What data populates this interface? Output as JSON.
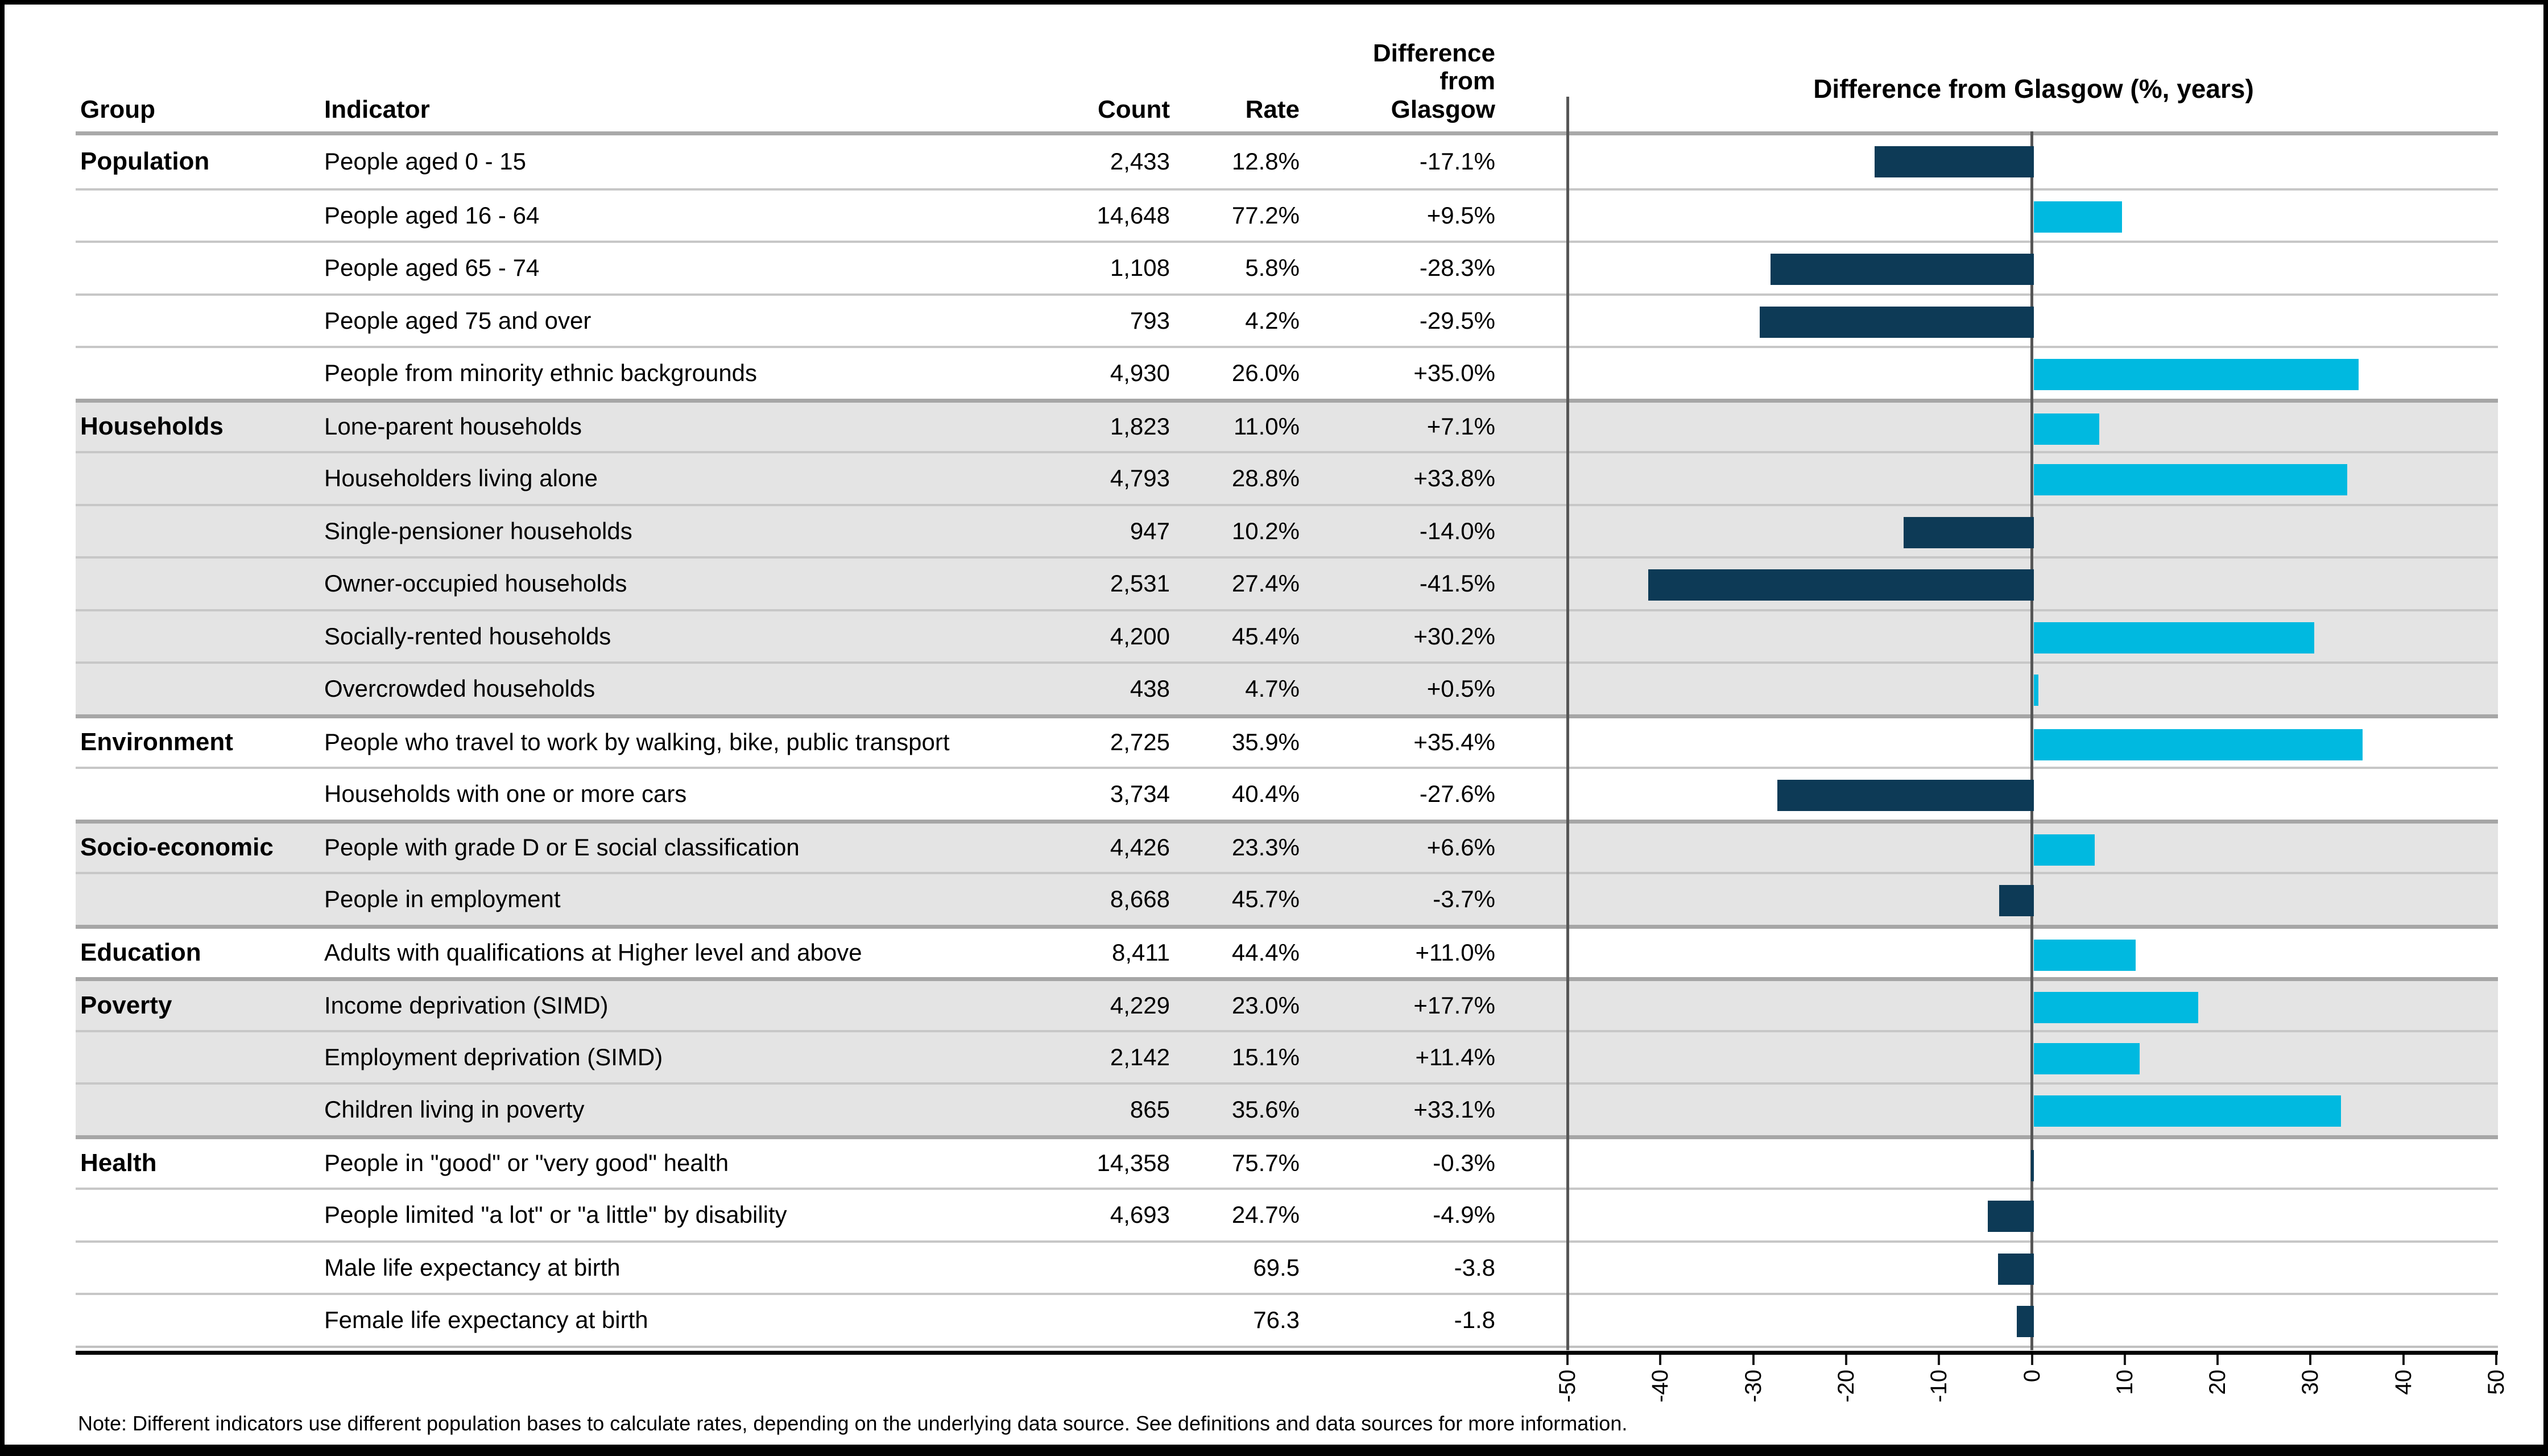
{
  "headers": {
    "group": "Group",
    "indicator": "Indicator",
    "count": "Count",
    "rate": "Rate",
    "difference": "Difference\nfrom\nGlasgow"
  },
  "note": "Note: Different indicators use different population bases to calculate rates, depending on the underlying data source. See definitions and data sources for more information.",
  "chart_data": {
    "type": "bar",
    "orientation": "horizontal",
    "title": "Difference from Glasgow (%, years)",
    "xlim": [
      -50,
      50
    ],
    "x_tick_labels": [
      "-50",
      "-40",
      "-30",
      "-20",
      "-10",
      "0",
      "10",
      "20",
      "30",
      "40",
      "50"
    ],
    "grid": false,
    "positive_color": "#00b9e0",
    "negative_color": "#0d3a56",
    "groups": [
      {
        "name": "Population",
        "shaded": false,
        "rows": [
          {
            "indicator": "People aged 0 - 15",
            "count": "2,433",
            "rate": "12.8%",
            "difference_label": "-17.1%",
            "value": -17.1
          },
          {
            "indicator": "People aged 16 - 64",
            "count": "14,648",
            "rate": "77.2%",
            "difference_label": "+9.5%",
            "value": 9.5
          },
          {
            "indicator": "People aged 65 - 74",
            "count": "1,108",
            "rate": "5.8%",
            "difference_label": "-28.3%",
            "value": -28.3
          },
          {
            "indicator": "People aged 75 and over",
            "count": "793",
            "rate": "4.2%",
            "difference_label": "-29.5%",
            "value": -29.5
          },
          {
            "indicator": "People from minority ethnic backgrounds",
            "count": "4,930",
            "rate": "26.0%",
            "difference_label": "+35.0%",
            "value": 35.0
          }
        ]
      },
      {
        "name": "Households",
        "shaded": true,
        "rows": [
          {
            "indicator": "Lone-parent households",
            "count": "1,823",
            "rate": "11.0%",
            "difference_label": "+7.1%",
            "value": 7.1
          },
          {
            "indicator": "Householders living alone",
            "count": "4,793",
            "rate": "28.8%",
            "difference_label": "+33.8%",
            "value": 33.8
          },
          {
            "indicator": "Single-pensioner households",
            "count": "947",
            "rate": "10.2%",
            "difference_label": "-14.0%",
            "value": -14.0
          },
          {
            "indicator": "Owner-occupied households",
            "count": "2,531",
            "rate": "27.4%",
            "difference_label": "-41.5%",
            "value": -41.5
          },
          {
            "indicator": "Socially-rented households",
            "count": "4,200",
            "rate": "45.4%",
            "difference_label": "+30.2%",
            "value": 30.2
          },
          {
            "indicator": "Overcrowded households",
            "count": "438",
            "rate": "4.7%",
            "difference_label": "+0.5%",
            "value": 0.5
          }
        ]
      },
      {
        "name": "Environment",
        "shaded": false,
        "rows": [
          {
            "indicator": "People who travel to work by walking, bike, public transport",
            "count": "2,725",
            "rate": "35.9%",
            "difference_label": "+35.4%",
            "value": 35.4
          },
          {
            "indicator": "Households with one or more cars",
            "count": "3,734",
            "rate": "40.4%",
            "difference_label": "-27.6%",
            "value": -27.6
          }
        ]
      },
      {
        "name": "Socio-economic",
        "shaded": true,
        "rows": [
          {
            "indicator": "People with grade D or E social classification",
            "count": "4,426",
            "rate": "23.3%",
            "difference_label": "+6.6%",
            "value": 6.6
          },
          {
            "indicator": "People in employment",
            "count": "8,668",
            "rate": "45.7%",
            "difference_label": "-3.7%",
            "value": -3.7
          }
        ]
      },
      {
        "name": "Education",
        "shaded": false,
        "rows": [
          {
            "indicator": "Adults with qualifications at Higher level and above",
            "count": "8,411",
            "rate": "44.4%",
            "difference_label": "+11.0%",
            "value": 11.0
          }
        ]
      },
      {
        "name": "Poverty",
        "shaded": true,
        "rows": [
          {
            "indicator": "Income deprivation (SIMD)",
            "count": "4,229",
            "rate": "23.0%",
            "difference_label": "+17.7%",
            "value": 17.7
          },
          {
            "indicator": "Employment deprivation (SIMD)",
            "count": "2,142",
            "rate": "15.1%",
            "difference_label": "+11.4%",
            "value": 11.4
          },
          {
            "indicator": "Children living in poverty",
            "count": "865",
            "rate": "35.6%",
            "difference_label": "+33.1%",
            "value": 33.1
          }
        ]
      },
      {
        "name": "Health",
        "shaded": false,
        "rows": [
          {
            "indicator": "People in \"good\" or \"very good\" health",
            "count": "14,358",
            "rate": "75.7%",
            "difference_label": "-0.3%",
            "value": -0.3
          },
          {
            "indicator": "People limited \"a lot\" or \"a little\" by disability",
            "count": "4,693",
            "rate": "24.7%",
            "difference_label": "-4.9%",
            "value": -4.9
          },
          {
            "indicator": "Male life expectancy at birth",
            "count": "",
            "rate": "69.5",
            "difference_label": "-3.8",
            "value": -3.8
          },
          {
            "indicator": "Female life expectancy at birth",
            "count": "",
            "rate": "76.3",
            "difference_label": "-1.8",
            "value": -1.8
          }
        ]
      }
    ]
  }
}
